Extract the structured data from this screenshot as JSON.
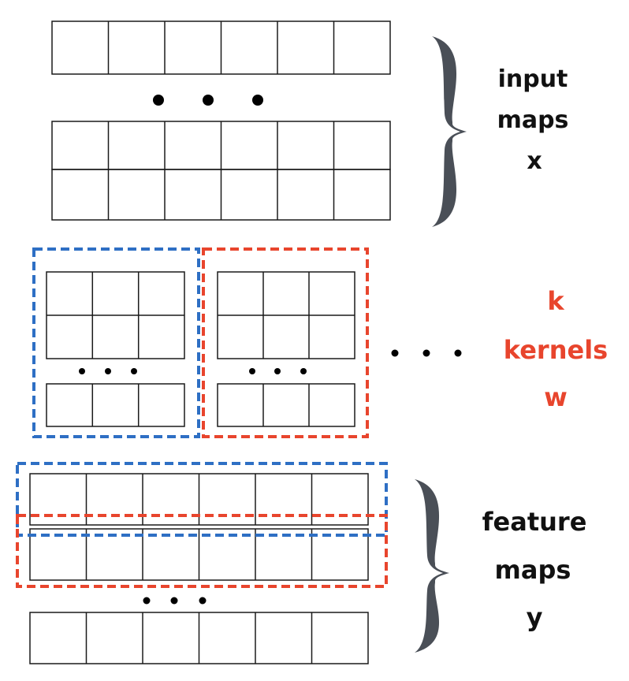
{
  "labels": {
    "input": [
      "input",
      "maps",
      "x"
    ],
    "kernels": [
      "k",
      "kernels",
      "w"
    ],
    "feature": [
      "feature",
      "maps",
      "y"
    ]
  },
  "colors": {
    "line": "#1a1a1a",
    "blue": "#2e6fc4",
    "red": "#e8452d",
    "brace": "#4a4f57",
    "dot": "#000000"
  }
}
